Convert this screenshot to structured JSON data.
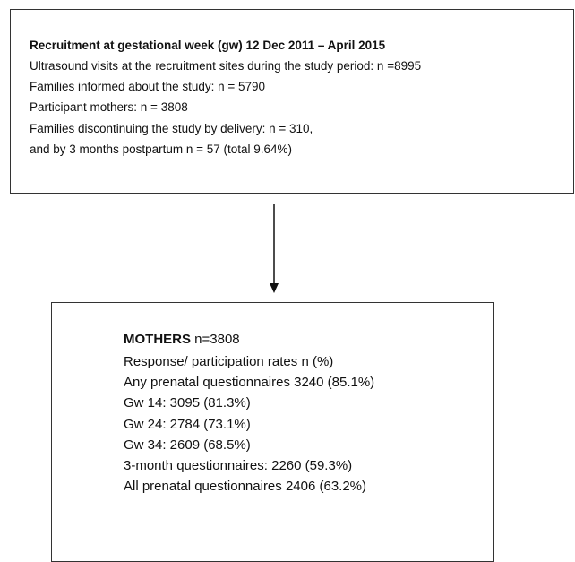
{
  "top_box": {
    "title": "Recruitment at gestational week (gw) 12 Dec 2011 – April 2015",
    "lines": [
      "Ultrasound visits at the recruitment sites during the study period: n =8995",
      "Families informed about the study: n = 5790",
      "Participant mothers: n = 3808",
      "Families discontinuing the study by delivery: n = 310,",
      "and by 3 months postpartum n = 57 (total 9.64%)"
    ]
  },
  "bottom_box": {
    "title": "MOTHERS",
    "title_suffix": "n=3808",
    "lines": [
      "Response/ participation rates n (%)",
      "Any prenatal questionnaires 3240 (85.1%)",
      "Gw 14: 3095 (81.3%)",
      "Gw 24: 2784 (73.1%)",
      "Gw 34: 2609 (68.5%)",
      "3-month questionnaires: 2260 (59.3%)",
      "All prenatal questionnaires 2406 (63.2%)"
    ]
  }
}
